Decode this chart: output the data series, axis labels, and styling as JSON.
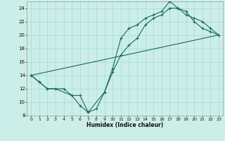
{
  "xlabel": "Humidex (Indice chaleur)",
  "bg_color": "#cceee8",
  "grid_color": "#aaddd8",
  "line_color": "#1a6b5a",
  "xlim": [
    -0.5,
    23.5
  ],
  "ylim": [
    8,
    25
  ],
  "xticks": [
    0,
    1,
    2,
    3,
    4,
    5,
    6,
    7,
    8,
    9,
    10,
    11,
    12,
    13,
    14,
    15,
    16,
    17,
    18,
    19,
    20,
    21,
    22,
    23
  ],
  "yticks": [
    8,
    10,
    12,
    14,
    16,
    18,
    20,
    22,
    24
  ],
  "line1_x": [
    0,
    1,
    2,
    3,
    4,
    5,
    6,
    7,
    8,
    9,
    10,
    11,
    12,
    13,
    14,
    15,
    16,
    17,
    18,
    19,
    20,
    21,
    22,
    23
  ],
  "line1_y": [
    14,
    13,
    12,
    12,
    12,
    11,
    9.5,
    8.5,
    9.0,
    11.5,
    15,
    19.5,
    21,
    21.5,
    22.5,
    23,
    23.5,
    25,
    24,
    23,
    22.5,
    22,
    21,
    20
  ],
  "line2_x": [
    0,
    1,
    2,
    3,
    5,
    6,
    7,
    9,
    10,
    11,
    12,
    13,
    14,
    15,
    16,
    17,
    18,
    19,
    20,
    21,
    22,
    23
  ],
  "line2_y": [
    14,
    13,
    12,
    12,
    11,
    11,
    8.5,
    11.5,
    14.5,
    17,
    18.5,
    19.5,
    21.5,
    22.5,
    23,
    24,
    24,
    23.5,
    22,
    21,
    20.5,
    20
  ],
  "line3_x": [
    0,
    23
  ],
  "line3_y": [
    14,
    20
  ]
}
